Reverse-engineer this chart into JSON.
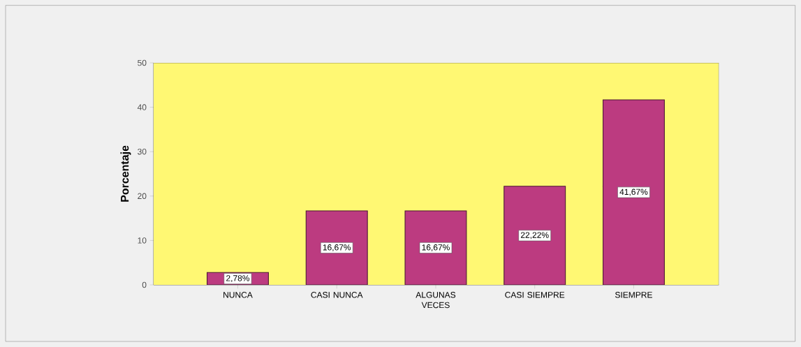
{
  "chart_data": {
    "type": "bar",
    "ylabel": "**Porcentaje**",
    "categories": [
      "NUNCA",
      "CASI NUNCA",
      "ALGUNAS VECES",
      "CASI SIEMPRE",
      "SIEMPRE"
    ],
    "values": [
      2.78,
      16.67,
      16.67,
      22.22,
      41.67
    ],
    "value_labels": [
      "2,78%",
      "16,67%",
      "16,67%",
      "22,22%",
      "41,67%"
    ],
    "color": "#bc3b80",
    "ylim": [
      0,
      50
    ],
    "yticks": [
      0,
      10,
      20,
      30,
      40,
      50
    ]
  }
}
